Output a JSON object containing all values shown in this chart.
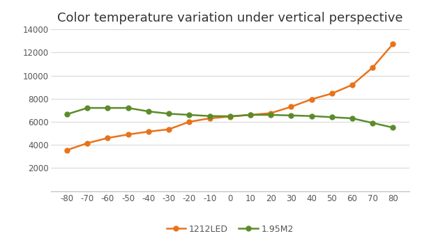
{
  "title": "Color temperature variation under vertical perspective",
  "x_values": [
    -80,
    -70,
    -60,
    -50,
    -40,
    -30,
    -20,
    -10,
    0,
    10,
    20,
    30,
    40,
    50,
    60,
    70,
    80
  ],
  "led1212": [
    3550,
    4150,
    4600,
    4900,
    5150,
    5350,
    6000,
    6300,
    6450,
    6600,
    6750,
    7300,
    7950,
    8450,
    9200,
    10700,
    12750
  ],
  "m195": [
    6650,
    7200,
    7200,
    7200,
    6900,
    6700,
    6600,
    6500,
    6480,
    6600,
    6600,
    6550,
    6500,
    6400,
    6300,
    5900,
    5500
  ],
  "color_led": "#E8731A",
  "color_m2": "#5B8C2A",
  "marker": "o",
  "ylim": [
    0,
    14000
  ],
  "yticks": [
    0,
    2000,
    4000,
    6000,
    8000,
    10000,
    12000,
    14000
  ],
  "xticks": [
    -80,
    -70,
    -60,
    -50,
    -40,
    -30,
    -20,
    -10,
    0,
    10,
    20,
    30,
    40,
    50,
    60,
    70,
    80
  ],
  "legend_labels": [
    "1212LED",
    "1.95M2"
  ],
  "bg_color": "#ffffff",
  "grid_color": "#d9d9d9",
  "title_fontsize": 13,
  "axis_fontsize": 8.5,
  "legend_fontsize": 9,
  "linewidth": 1.8,
  "markersize": 5
}
